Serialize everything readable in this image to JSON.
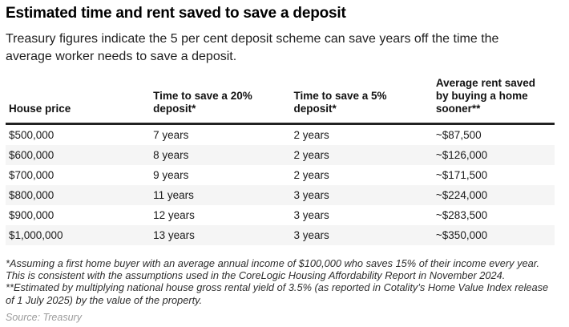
{
  "chart_data": {
    "type": "table",
    "title": "Estimated time and rent saved to save a deposit",
    "subtitle": "Treasury figures indicate the 5 per cent deposit scheme can save years off the time the average worker needs to save a deposit.",
    "columns": [
      "House price",
      "Time to save a 20% deposit*",
      "Time to save a 5% deposit*",
      "Average rent saved by buying a home sooner**"
    ],
    "rows": [
      [
        "$500,000",
        "7 years",
        "2 years",
        "~$87,500"
      ],
      [
        "$600,000",
        "8 years",
        "2 years",
        "~$126,000"
      ],
      [
        "$700,000",
        "9 years",
        "2 years",
        "~$171,500"
      ],
      [
        "$800,000",
        "11 years",
        "3 years",
        "~$224,000"
      ],
      [
        "$900,000",
        "12 years",
        "3 years",
        "~$283,500"
      ],
      [
        "$1,000,000",
        "13 years",
        "3 years",
        "~$350,000"
      ]
    ],
    "footnote": "*Assuming a first home buyer with an average annual income of $100,000 who saves 15% of their income every year. This is consistent with the assumptions used in the CoreLogic Housing Affordability Report in November 2024. **Estimated by multiplying national house gross rental yield of 3.5% (as reported in Cotality’s Home Value Index release of 1 July 2025) by the value of the property.",
    "source": "Source: Treasury",
    "layout_hints": {
      "stripe_rows": "even",
      "header_rule": "heavy-bottom-border"
    },
    "colors": {
      "stripe": "#f5f5f5",
      "header_rule": "#222222",
      "text": "#1a1a1a",
      "source_text": "#9b9b9b"
    }
  }
}
